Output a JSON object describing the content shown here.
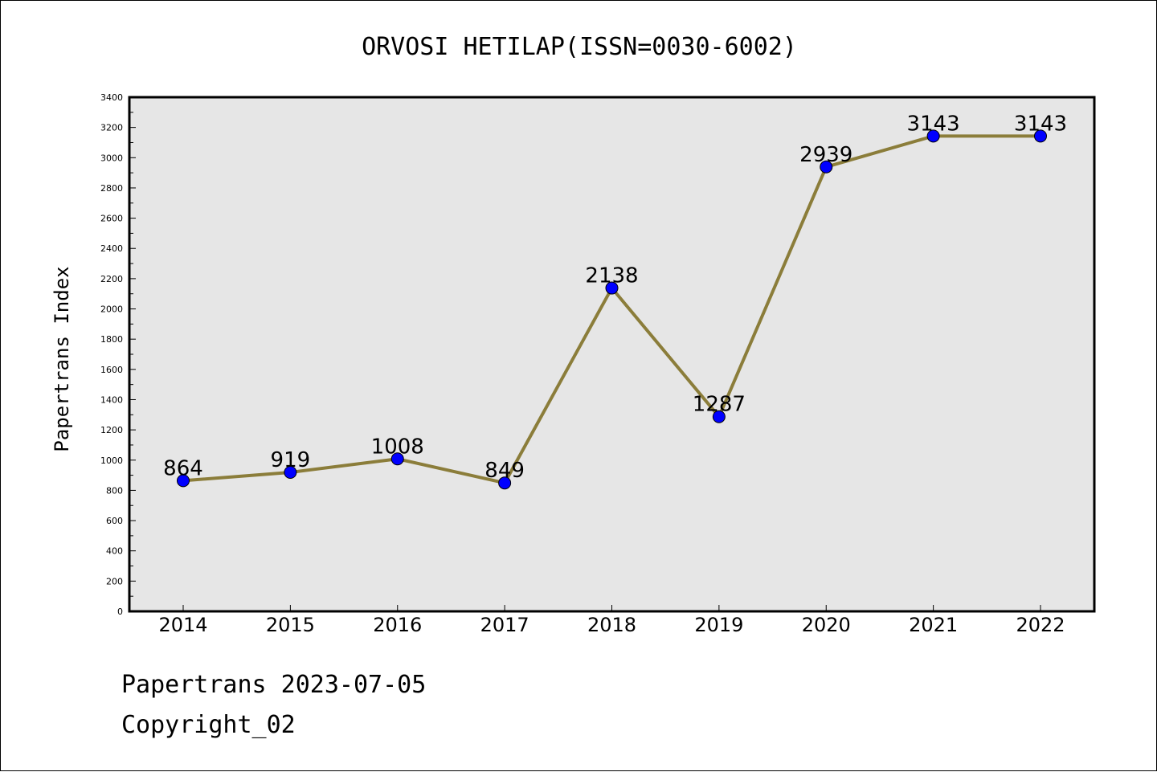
{
  "chart_data": {
    "type": "line",
    "title": "ORVOSI HETILAP(ISSN=0030-6002)",
    "xlabel": "",
    "ylabel": "Papertrans Index",
    "categories": [
      "2014",
      "2015",
      "2016",
      "2017",
      "2018",
      "2019",
      "2020",
      "2021",
      "2022"
    ],
    "values": [
      864,
      919,
      1008,
      849,
      2138,
      1287,
      2939,
      3143,
      3143
    ],
    "data_labels": [
      "864",
      "919",
      "1008",
      "849",
      "2138",
      "1287",
      "2939",
      "3143",
      "3143"
    ],
    "ylim": [
      0,
      3400
    ],
    "yticks": [
      0,
      200,
      400,
      600,
      800,
      1000,
      1200,
      1400,
      1600,
      1800,
      2000,
      2200,
      2400,
      2600,
      2800,
      3000,
      3200,
      3400
    ],
    "grid": false,
    "line_color": "#8b7d3a",
    "marker_color": "#0000ff",
    "plot_background": "#e6e6e6"
  },
  "footer": {
    "line1": "Papertrans 2023-07-05",
    "line2": "Copyright_02"
  }
}
